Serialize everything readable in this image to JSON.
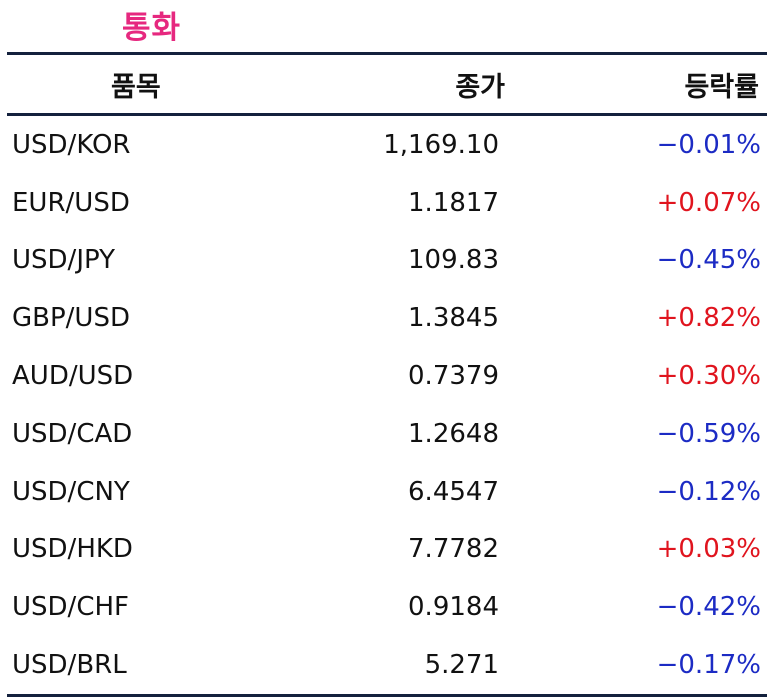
{
  "title": "통화",
  "columns": {
    "item": "품목",
    "close": "종가",
    "change": "등락률"
  },
  "colors": {
    "title": "#e6287f",
    "rule": "#14213d",
    "up": "#e0141e",
    "down": "#1c2bc4"
  },
  "rows": [
    {
      "item": "USD/KOR",
      "close": "1,169.10",
      "change": "−0.01%",
      "direction": "down"
    },
    {
      "item": "EUR/USD",
      "close": "1.1817",
      "change": "+0.07%",
      "direction": "up"
    },
    {
      "item": "USD/JPY",
      "close": "109.83",
      "change": "−0.45%",
      "direction": "down"
    },
    {
      "item": "GBP/USD",
      "close": "1.3845",
      "change": "+0.82%",
      "direction": "up"
    },
    {
      "item": "AUD/USD",
      "close": "0.7379",
      "change": "+0.30%",
      "direction": "up"
    },
    {
      "item": "USD/CAD",
      "close": "1.2648",
      "change": "−0.59%",
      "direction": "down"
    },
    {
      "item": "USD/CNY",
      "close": "6.4547",
      "change": "−0.12%",
      "direction": "down"
    },
    {
      "item": "USD/HKD",
      "close": "7.7782",
      "change": "+0.03%",
      "direction": "up"
    },
    {
      "item": "USD/CHF",
      "close": "0.9184",
      "change": "−0.42%",
      "direction": "down"
    },
    {
      "item": "USD/BRL",
      "close": "5.271",
      "change": "−0.17%",
      "direction": "down"
    }
  ]
}
